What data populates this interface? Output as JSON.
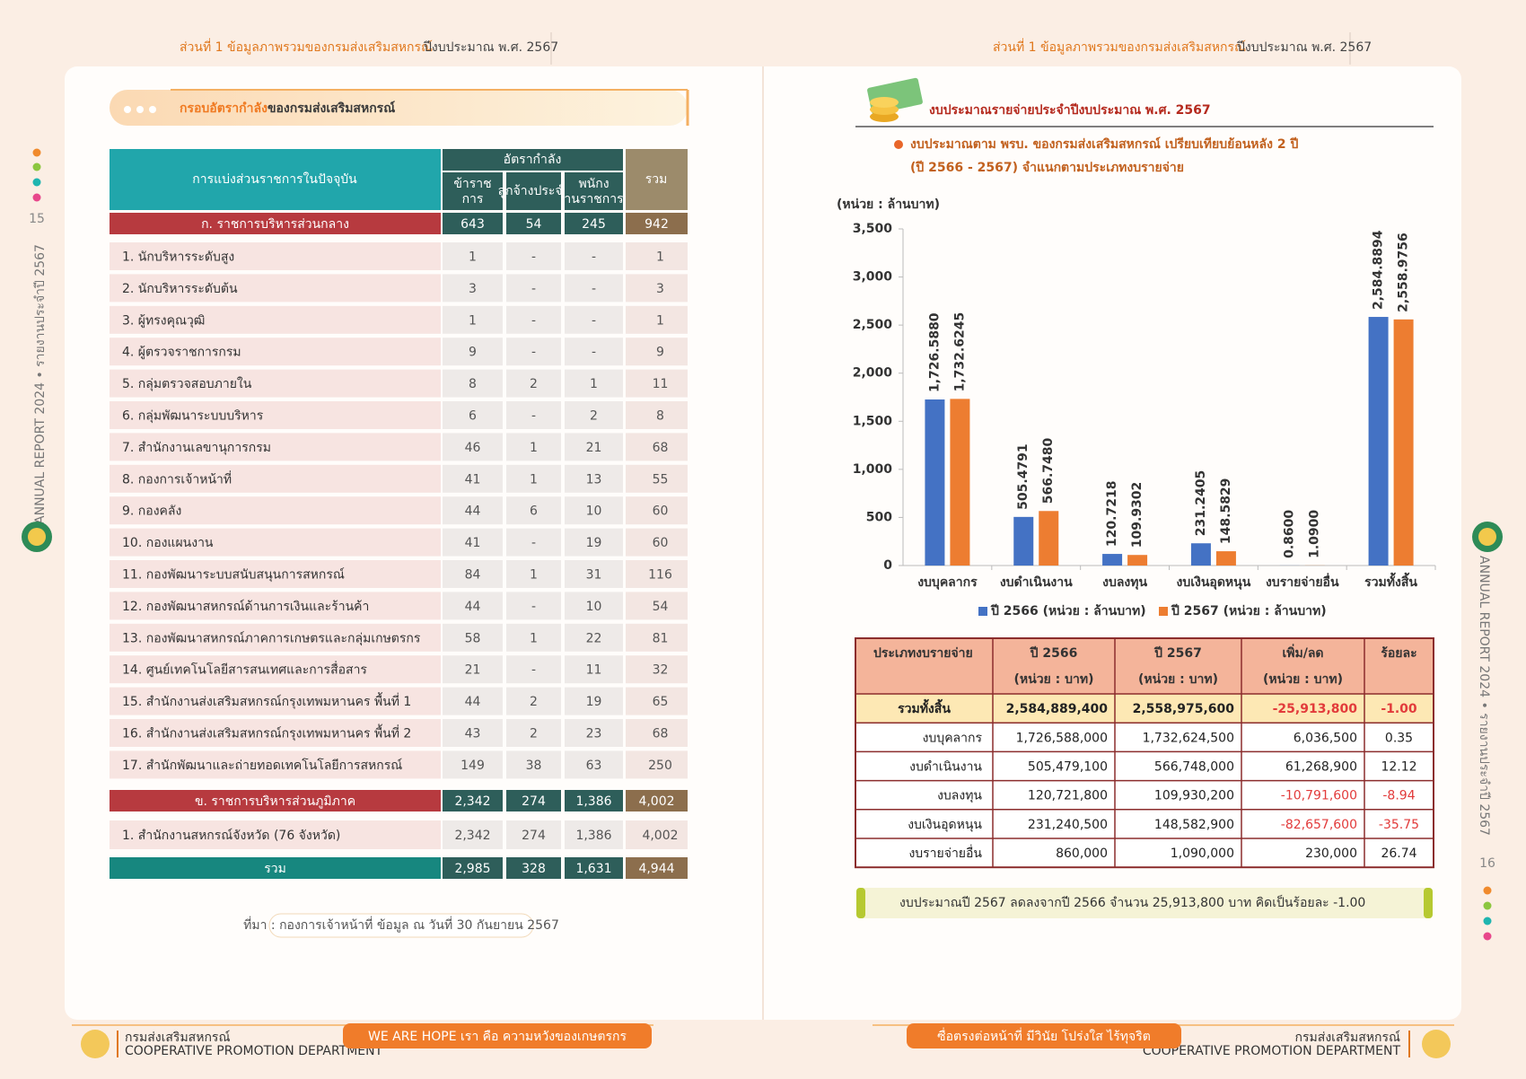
{
  "header": {
    "part": "ส่วนที่ 1 ข้อมูลภาพรวมของกรมส่งเสริมสหกรณ์",
    "year": "ปีงบประมาณ พ.ศ. 2567"
  },
  "side": {
    "left_page": "15",
    "right_page": "16",
    "text": "ANNUAL REPORT 2024 • รายงานประจำปี 2567"
  },
  "left": {
    "title_a": "กรอบอัตรากำลัง",
    "title_b": "ของกรมส่งเสริมสหกรณ์"
  },
  "table": {
    "headers": [
      "การแบ่งส่วนราชการในปัจจุบัน",
      "อัตรากำลัง",
      "ข้าราชการ",
      "ลูกจ้างประจำ",
      "พนักงานราชการ",
      "รวม"
    ],
    "section_a": [
      "ก. ราชการบริหารส่วนกลาง",
      "643",
      "54",
      "245",
      "942"
    ],
    "rows": [
      [
        "1.  นักบริหารระดับสูง",
        "1",
        "-",
        "-",
        "1"
      ],
      [
        "2.  นักบริหารระดับต้น",
        "3",
        "-",
        "-",
        "3"
      ],
      [
        "3.  ผู้ทรงคุณวุฒิ",
        "1",
        "-",
        "-",
        "1"
      ],
      [
        "4.  ผู้ตรวจราชการกรม",
        "9",
        "-",
        "-",
        "9"
      ],
      [
        "5.  กลุ่มตรวจสอบภายใน",
        "8",
        "2",
        "1",
        "11"
      ],
      [
        "6.  กลุ่มพัฒนาระบบบริหาร",
        "6",
        "-",
        "2",
        "8"
      ],
      [
        "7.  สำนักงานเลขานุการกรม",
        "46",
        "1",
        "21",
        "68"
      ],
      [
        "8.  กองการเจ้าหน้าที่",
        "41",
        "1",
        "13",
        "55"
      ],
      [
        "9.  กองคลัง",
        "44",
        "6",
        "10",
        "60"
      ],
      [
        "10. กองแผนงาน",
        "41",
        "-",
        "19",
        "60"
      ],
      [
        "11. กองพัฒนาระบบสนับสนุนการสหกรณ์",
        "84",
        "1",
        "31",
        "116"
      ],
      [
        "12. กองพัฒนาสหกรณ์ด้านการเงินและร้านค้า",
        "44",
        "-",
        "10",
        "54"
      ],
      [
        "13. กองพัฒนาสหกรณ์ภาคการเกษตรและกลุ่มเกษตรกร",
        "58",
        "1",
        "22",
        "81"
      ],
      [
        "14. ศูนย์เทคโนโลยีสารสนเทศและการสื่อสาร",
        "21",
        "-",
        "11",
        "32"
      ],
      [
        "15. สำนักงานส่งเสริมสหกรณ์กรุงเทพมหานคร  พื้นที่ 1",
        "44",
        "2",
        "19",
        "65"
      ],
      [
        "16. สำนักงานส่งเสริมสหกรณ์กรุงเทพมหานคร  พื้นที่ 2",
        "43",
        "2",
        "23",
        "68"
      ],
      [
        "17. สำนักพัฒนาและถ่ายทอดเทคโนโลยีการสหกรณ์",
        "149",
        "38",
        "63",
        "250"
      ]
    ],
    "section_b": [
      "ข. ราชการบริหารส่วนภูมิภาค",
      "2,342",
      "274",
      "1,386",
      "4,002"
    ],
    "rows_b": [
      [
        "1.  สำนักงานสหกรณ์จังหวัด (76 จังหวัด)",
        "2,342",
        "274",
        "1,386",
        "4,002"
      ]
    ],
    "total": [
      "รวม",
      "2,985",
      "328",
      "1,631",
      "4,944"
    ],
    "source": "ที่มา : กองการเจ้าหน้าที่ ข้อมูล ณ วันที่ 30 กันยายน 2567"
  },
  "right": {
    "title": "งบประมาณรายจ่ายประจำปีงบประมาณ พ.ศ. 2567",
    "subtitle": [
      "งบประมาณตาม พรบ. ของกรมส่งเสริมสหกรณ์ เปรียบเทียบย้อนหลัง 2 ปี",
      "(ปี 2566 - 2567) จำแนกตามประเภทงบรายจ่าย"
    ]
  },
  "chart_data": {
    "type": "bar",
    "y_label": "(หน่วย : ล้านบาท)",
    "categories": [
      "งบบุคลากร",
      "งบดำเนินงาน",
      "งบลงทุน",
      "งบเงินอุดหนุน",
      "งบรายจ่ายอื่น",
      "รวมทั้งสิ้น"
    ],
    "series": [
      {
        "name": "ปี 2566 (หน่วย : ล้านบาท)",
        "color": "#4472c4",
        "values": [
          1726.588,
          505.4791,
          120.7218,
          231.2405,
          0.86,
          2584.8894
        ],
        "value_labels": [
          "1,726.5880",
          "505.4791",
          "120.7218",
          "231.2405",
          "0.8600",
          "2,584.8894"
        ]
      },
      {
        "name": "ปี 2567 (หน่วย : ล้านบาท)",
        "color": "#ed7d31",
        "values": [
          1732.6245,
          566.748,
          109.9302,
          148.5829,
          1.09,
          2558.9756
        ],
        "value_labels": [
          "1,732.6245",
          "566.7480",
          "109.9302",
          "148.5829",
          "1.0900",
          "2,558.9756"
        ]
      }
    ],
    "ylim": [
      0,
      3500
    ],
    "yticks": [
      0,
      500,
      {
        "value": 1000,
        "label": "1,000"
      },
      {
        "value": 1500,
        "label": "1,500"
      },
      {
        "value": 2000,
        "label": "2,000"
      },
      {
        "value": 2500,
        "label": "2,500"
      },
      {
        "value": 3000,
        "label": "3,000"
      },
      {
        "value": 3500,
        "label": "3,500"
      }
    ],
    "grid": false,
    "legend": "bottom"
  },
  "budget_table": {
    "headers": [
      "ประเภทงบรายจ่าย",
      "ปี 2566",
      "ปี 2567",
      "เพิ่ม/ลด",
      "ร้อยละ"
    ],
    "unit": "(หน่วย : บาท)",
    "rows": [
      [
        "รวมทั้งสิ้น",
        "2,584,889,400",
        "2,558,975,600",
        "-25,913,800",
        "-1.00"
      ],
      [
        "งบบุคลากร",
        "1,726,588,000",
        "1,732,624,500",
        "6,036,500",
        "0.35"
      ],
      [
        "งบดำเนินงาน",
        "505,479,100",
        "566,748,000",
        "61,268,900",
        "12.12"
      ],
      [
        "งบลงทุน",
        "120,721,800",
        "109,930,200",
        "-10,791,600",
        "-8.94"
      ],
      [
        "งบเงินอุดหนุน",
        "231,240,500",
        "148,582,900",
        "-82,657,600",
        "-35.75"
      ],
      [
        "งบรายจ่ายอื่น",
        "860,000",
        "1,090,000",
        "230,000",
        "26.74"
      ]
    ]
  },
  "summary": "งบประมาณปี 2567 ลดลงจากปี 2566 จำนวน 25,913,800 บาท คิดเป็นร้อยละ -1.00",
  "footer": {
    "org_th": "กรมส่งเสริมสหกรณ์",
    "org_en": "COOPERATIVE PROMOTION DEPARTMENT",
    "slogan_left": "WE ARE HOPE เรา คือ ความหวังของเกษตรกร",
    "slogan_right": "ซื่อตรงต่อหน้าที่ มีวินัย โปร่งใส ไร้ทุจริต"
  }
}
